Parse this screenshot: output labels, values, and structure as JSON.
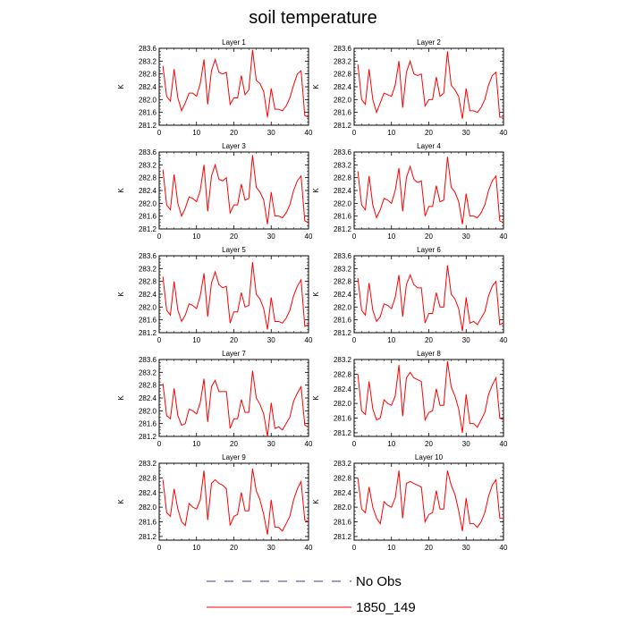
{
  "title": "soil temperature",
  "legend": [
    {
      "label": "No Obs",
      "color": "#3b3b8f",
      "dashed": true
    },
    {
      "label": "1850_149",
      "color": "#ff0000",
      "dashed": false
    }
  ],
  "chart_data": {
    "type": "line",
    "title": "soil temperature",
    "ylabel": "K",
    "xlim": [
      0,
      40
    ],
    "xticks": [
      0,
      10,
      20,
      30,
      40
    ],
    "grid": false,
    "legend_placement": "bottom-center",
    "x": [
      1,
      2,
      3,
      4,
      5,
      6,
      7,
      8,
      9,
      10,
      11,
      12,
      13,
      14,
      15,
      16,
      17,
      18,
      19,
      20,
      21,
      22,
      23,
      24,
      25,
      26,
      27,
      28,
      29,
      30,
      31,
      32,
      33,
      34,
      35,
      36,
      37,
      38,
      39,
      40
    ],
    "panels": [
      {
        "name": "Layer 1",
        "ylim": [
          281.2,
          283.6
        ],
        "yticks": [
          "281.2",
          "281.6",
          "282.0",
          "282.4",
          "282.8",
          "283.2",
          "283.6"
        ],
        "series": [
          {
            "name": "1850_149",
            "values": [
              283.05,
              282.1,
              281.95,
              282.95,
              282.05,
              281.65,
              281.9,
              282.2,
              282.2,
              282.1,
              282.5,
              283.25,
              281.85,
              282.9,
              283.25,
              282.85,
              282.8,
              282.85,
              281.85,
              282.05,
              282.05,
              282.75,
              282.15,
              282.3,
              283.55,
              282.6,
              282.5,
              282.25,
              281.45,
              282.35,
              281.7,
              281.7,
              281.65,
              281.8,
              282.05,
              282.45,
              282.8,
              282.9,
              281.5,
              281.45
            ]
          }
        ]
      },
      {
        "name": "Layer 2",
        "ylim": [
          281.2,
          283.6
        ],
        "yticks": [
          "281.2",
          "281.6",
          "282.0",
          "282.4",
          "282.8",
          "283.2",
          "283.6"
        ],
        "series": [
          {
            "name": "1850_149",
            "values": [
              283.1,
              282.0,
              281.85,
              282.95,
              282.0,
              281.6,
              281.9,
              282.2,
              282.15,
              282.1,
              282.45,
              283.2,
              281.75,
              282.85,
              283.2,
              282.8,
              282.75,
              282.8,
              281.8,
              282.0,
              282.0,
              282.7,
              282.1,
              282.2,
              283.5,
              282.45,
              282.3,
              282.1,
              281.4,
              282.35,
              281.65,
              281.65,
              281.6,
              281.75,
              282.0,
              282.45,
              282.75,
              282.85,
              281.45,
              281.45
            ]
          }
        ]
      },
      {
        "name": "Layer 3",
        "ylim": [
          281.2,
          283.6
        ],
        "yticks": [
          "281.2",
          "281.6",
          "282.0",
          "282.4",
          "282.8",
          "283.2",
          "283.6"
        ],
        "series": [
          {
            "name": "1850_149",
            "values": [
              283.05,
              281.95,
              281.8,
              282.9,
              282.0,
              281.6,
              281.85,
              282.2,
              282.15,
              282.05,
              282.4,
              283.2,
              281.75,
              282.85,
              283.2,
              282.75,
              282.7,
              282.8,
              281.7,
              281.95,
              281.95,
              282.6,
              282.1,
              282.15,
              283.5,
              282.5,
              282.35,
              282.1,
              281.35,
              282.35,
              281.6,
              281.6,
              281.55,
              281.7,
              281.95,
              282.4,
              282.7,
              282.85,
              281.45,
              281.4
            ]
          }
        ]
      },
      {
        "name": "Layer 4",
        "ylim": [
          281.2,
          283.6
        ],
        "yticks": [
          "281.2",
          "281.6",
          "282.0",
          "282.4",
          "282.8",
          "283.2",
          "283.6"
        ],
        "series": [
          {
            "name": "1850_149",
            "values": [
              283.0,
              281.95,
              281.8,
              282.85,
              281.95,
              281.55,
              281.8,
              282.15,
              282.1,
              282.0,
              282.4,
              283.1,
              281.75,
              282.8,
              283.15,
              282.75,
              282.65,
              282.7,
              281.6,
              281.9,
              281.9,
              282.55,
              282.05,
              282.1,
              283.45,
              282.5,
              282.35,
              282.05,
              281.35,
              282.3,
              281.6,
              281.6,
              281.55,
              281.7,
              281.95,
              282.4,
              282.7,
              282.85,
              281.45,
              281.4
            ]
          }
        ]
      },
      {
        "name": "Layer 5",
        "ylim": [
          281.2,
          283.6
        ],
        "yticks": [
          "281.2",
          "281.6",
          "282.0",
          "282.4",
          "282.8",
          "283.2",
          "283.6"
        ],
        "series": [
          {
            "name": "1850_149",
            "values": [
              282.95,
              281.9,
              281.75,
              282.8,
              281.9,
              281.55,
              281.75,
              282.1,
              282.05,
              281.95,
              282.35,
              283.05,
              281.7,
              282.75,
              283.1,
              282.7,
              282.6,
              282.65,
              281.5,
              281.85,
              281.85,
              282.45,
              282.0,
              282.05,
              283.4,
              282.4,
              282.25,
              281.95,
              281.3,
              282.3,
              281.55,
              281.55,
              281.5,
              281.65,
              281.9,
              282.35,
              282.65,
              282.85,
              281.4,
              281.45
            ]
          }
        ]
      },
      {
        "name": "Layer 6",
        "ylim": [
          281.2,
          283.6
        ],
        "yticks": [
          "281.2",
          "281.6",
          "282.0",
          "282.4",
          "282.8",
          "283.2",
          "283.6"
        ],
        "series": [
          {
            "name": "1850_149",
            "values": [
              282.9,
              281.9,
              281.75,
              282.75,
              281.9,
              281.55,
              281.7,
              282.1,
              282.05,
              281.95,
              282.3,
              283.0,
              281.7,
              282.7,
              283.0,
              282.7,
              282.6,
              282.6,
              281.5,
              281.8,
              281.8,
              282.45,
              282.0,
              282.0,
              283.3,
              282.4,
              282.25,
              281.95,
              281.25,
              282.3,
              281.5,
              281.55,
              281.45,
              281.65,
              281.85,
              282.35,
              282.65,
              282.8,
              281.45,
              281.5
            ]
          }
        ]
      },
      {
        "name": "Layer 7",
        "ylim": [
          281.2,
          283.6
        ],
        "yticks": [
          "281.2",
          "281.6",
          "282.0",
          "282.4",
          "282.8",
          "283.2",
          "283.6"
        ],
        "series": [
          {
            "name": "1850_149",
            "values": [
              282.85,
              281.85,
              281.75,
              282.7,
              281.85,
              281.55,
              281.6,
              282.05,
              282.0,
              281.9,
              282.25,
              283.0,
              281.65,
              282.75,
              282.95,
              282.6,
              282.6,
              282.6,
              281.45,
              281.75,
              281.75,
              282.35,
              281.95,
              281.95,
              283.25,
              282.4,
              282.2,
              281.9,
              281.2,
              282.25,
              281.45,
              281.5,
              281.4,
              281.6,
              281.8,
              282.3,
              282.55,
              282.75,
              281.55,
              281.5
            ]
          }
        ]
      },
      {
        "name": "Layer 8",
        "ylim": [
          281.1,
          283.2
        ],
        "yticks": [
          "281.2",
          "281.6",
          "282.0",
          "282.4",
          "282.8",
          "283.2"
        ],
        "series": [
          {
            "name": "1850_149",
            "values": [
              282.8,
              281.8,
              281.7,
              282.6,
              281.85,
              281.55,
              281.6,
              282.1,
              282.0,
              281.95,
              282.2,
              283.05,
              281.65,
              282.7,
              282.85,
              282.7,
              282.65,
              282.6,
              281.55,
              281.75,
              281.8,
              282.4,
              281.95,
              281.95,
              283.15,
              282.45,
              282.2,
              281.85,
              281.2,
              282.25,
              281.45,
              281.45,
              281.35,
              281.55,
              281.75,
              282.25,
              282.5,
              282.7,
              281.6,
              281.55
            ]
          }
        ]
      },
      {
        "name": "Layer 9",
        "ylim": [
          281.1,
          283.2
        ],
        "yticks": [
          "281.2",
          "281.6",
          "282.0",
          "282.4",
          "282.8",
          "283.2"
        ],
        "series": [
          {
            "name": "1850_149",
            "values": [
              282.75,
              281.85,
              281.75,
              282.5,
              281.95,
              281.6,
              281.5,
              282.1,
              282.0,
              281.95,
              282.2,
              283.0,
              281.65,
              282.65,
              282.75,
              282.65,
              282.6,
              282.5,
              281.5,
              281.75,
              281.8,
              282.4,
              281.9,
              281.9,
              283.05,
              282.45,
              282.2,
              281.8,
              281.25,
              282.2,
              281.45,
              281.45,
              281.35,
              281.55,
              281.75,
              282.2,
              282.5,
              282.7,
              281.65,
              281.6
            ]
          }
        ]
      },
      {
        "name": "Layer 10",
        "ylim": [
          281.1,
          283.2
        ],
        "yticks": [
          "281.2",
          "281.6",
          "282.0",
          "282.4",
          "282.8",
          "283.2"
        ],
        "series": [
          {
            "name": "1850_149",
            "values": [
              282.8,
              281.95,
              281.85,
              282.55,
              282.0,
              281.7,
              281.55,
              282.15,
              282.05,
              282.0,
              282.25,
              283.0,
              281.7,
              282.65,
              282.7,
              282.65,
              282.6,
              282.55,
              281.6,
              281.8,
              281.85,
              282.45,
              281.95,
              281.95,
              283.0,
              282.6,
              282.35,
              281.9,
              281.35,
              282.25,
              281.55,
              281.55,
              281.45,
              281.6,
              281.85,
              282.3,
              282.6,
              282.75,
              281.7,
              281.7
            ]
          }
        ]
      }
    ]
  }
}
